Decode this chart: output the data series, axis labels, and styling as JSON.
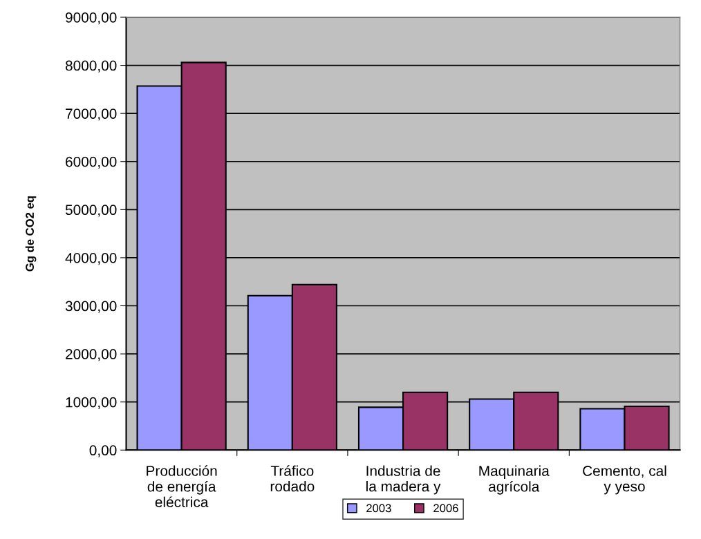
{
  "chart_data": {
    "type": "bar",
    "ylabel": "Gg de CO2 eq",
    "categories": [
      "Producción\nde energía\neléctrica",
      "Tráfico\nrodado",
      "Industria de\nla madera y",
      "Maquinaria\nagrícola",
      "Cemento, cal\ny yeso"
    ],
    "series": [
      {
        "name": "2003",
        "color": "#9999ff",
        "values": [
          7570,
          3210,
          890,
          1060,
          860
        ]
      },
      {
        "name": "2006",
        "color": "#993366",
        "values": [
          8060,
          3440,
          1200,
          1200,
          910
        ]
      }
    ],
    "ylim": [
      0,
      9000
    ],
    "yticks": [
      {
        "value": 0,
        "label": "0,00"
      },
      {
        "value": 1000,
        "label": "1000,00"
      },
      {
        "value": 2000,
        "label": "2000,00"
      },
      {
        "value": 3000,
        "label": "3000,00"
      },
      {
        "value": 4000,
        "label": "4000,00"
      },
      {
        "value": 5000,
        "label": "5000,00"
      },
      {
        "value": 6000,
        "label": "6000,00"
      },
      {
        "value": 7000,
        "label": "7000,00"
      },
      {
        "value": 8000,
        "label": "8000,00"
      },
      {
        "value": 9000,
        "label": "9000,00"
      }
    ],
    "grid": "y",
    "legend": "bottom"
  }
}
